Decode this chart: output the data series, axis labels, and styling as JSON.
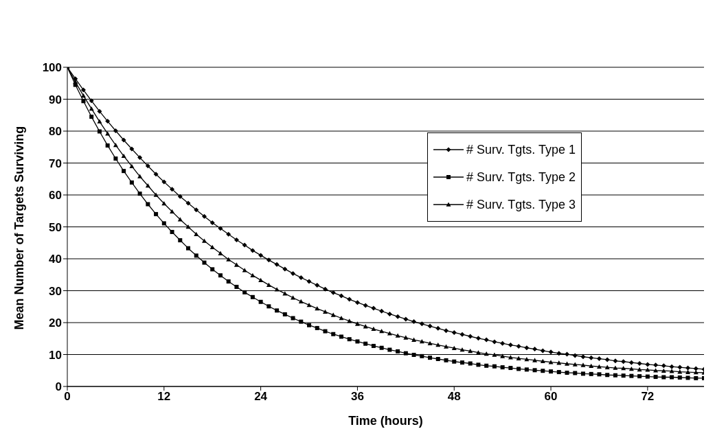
{
  "chart_data": {
    "type": "line",
    "xlabel": "Time (hours)",
    "ylabel": "Mean Number of Targets Surviving",
    "x": [
      0,
      1,
      2,
      3,
      4,
      5,
      6,
      7,
      8,
      9,
      10,
      11,
      12,
      13,
      14,
      15,
      16,
      17,
      18,
      19,
      20,
      21,
      22,
      23,
      24,
      25,
      26,
      27,
      28,
      29,
      30,
      31,
      32,
      33,
      34,
      35,
      36,
      37,
      38,
      39,
      40,
      41,
      42,
      43,
      44,
      45,
      46,
      47,
      48,
      49,
      50,
      51,
      52,
      53,
      54,
      55,
      56,
      57,
      58,
      59,
      60,
      61,
      62,
      63,
      64,
      65,
      66,
      67,
      68,
      69,
      70,
      71,
      72,
      73,
      74,
      75,
      76,
      77,
      78,
      79
    ],
    "xlim": [
      0,
      79
    ],
    "xticks": [
      0,
      12,
      24,
      36,
      48,
      60,
      72
    ],
    "ylim": [
      0,
      100
    ],
    "yticks": [
      0,
      10,
      20,
      30,
      40,
      50,
      60,
      70,
      80,
      90,
      100
    ],
    "grid": "y",
    "legend": "right",
    "line_style": "solid",
    "series": [
      {
        "name": "# Surv. Tgts. Type 1",
        "color": "#000000",
        "marker": "diamond",
        "values": [
          100,
          96.4,
          92.9,
          89.5,
          86.2,
          83.1,
          80.1,
          77.2,
          74.4,
          71.7,
          69.1,
          66.5,
          64.1,
          61.8,
          59.5,
          57.4,
          55.3,
          53.3,
          51.3,
          49.5,
          47.7,
          45.9,
          44.3,
          42.6,
          41.1,
          39.6,
          38.2,
          36.8,
          35.4,
          34.1,
          32.9,
          31.7,
          30.5,
          29.4,
          28.4,
          27.3,
          26.3,
          25.4,
          24.5,
          23.6,
          22.7,
          21.9,
          21.1,
          20.3,
          19.6,
          18.9,
          18.2,
          17.5,
          16.9,
          16.3,
          15.7,
          15.1,
          14.6,
          14.0,
          13.5,
          13.0,
          12.6,
          12.1,
          11.7,
          11.2,
          10.8,
          10.4,
          10.1,
          9.7,
          9.3,
          9.0,
          8.7,
          8.4,
          8.0,
          7.8,
          7.5,
          7.2,
          6.9,
          6.7,
          6.5,
          6.2,
          6.0,
          5.8,
          5.6,
          5.4
        ]
      },
      {
        "name": "# Surv. Tgts. Type 2",
        "color": "#000000",
        "marker": "square",
        "values": [
          100,
          94.5,
          89.4,
          84.5,
          79.9,
          75.5,
          71.4,
          67.5,
          63.9,
          60.4,
          57.1,
          54.0,
          51.1,
          48.4,
          45.8,
          43.3,
          41.0,
          38.8,
          36.7,
          34.8,
          32.9,
          31.2,
          29.5,
          28.0,
          26.5,
          25.1,
          23.8,
          22.6,
          21.4,
          20.3,
          19.2,
          18.3,
          17.3,
          16.4,
          15.6,
          14.8,
          14.1,
          13.4,
          12.7,
          12.1,
          11.5,
          11.0,
          10.4,
          9.9,
          9.5,
          9.0,
          8.6,
          8.2,
          7.8,
          7.5,
          7.2,
          6.8,
          6.5,
          6.3,
          6.0,
          5.8,
          5.5,
          5.3,
          5.1,
          4.9,
          4.7,
          4.5,
          4.3,
          4.2,
          4.0,
          3.9,
          3.8,
          3.6,
          3.5,
          3.4,
          3.3,
          3.2,
          3.1,
          3.0,
          2.9,
          2.9,
          2.8,
          2.7,
          2.6,
          2.6
        ]
      },
      {
        "name": "# Surv. Tgts. Type 3",
        "color": "#000000",
        "marker": "triangle",
        "values": [
          100,
          95.4,
          91.1,
          87.0,
          83.0,
          79.2,
          75.6,
          72.2,
          69.0,
          65.8,
          62.9,
          60.0,
          57.3,
          54.8,
          52.3,
          50.0,
          47.7,
          45.6,
          43.6,
          41.7,
          39.8,
          38.1,
          36.4,
          34.8,
          33.3,
          31.8,
          30.4,
          29.1,
          27.8,
          26.6,
          25.5,
          24.4,
          23.4,
          22.4,
          21.4,
          20.5,
          19.6,
          18.8,
          18.0,
          17.3,
          16.6,
          15.9,
          15.3,
          14.6,
          14.1,
          13.5,
          13.0,
          12.5,
          12.0,
          11.5,
          11.1,
          10.6,
          10.2,
          9.9,
          9.5,
          9.1,
          8.8,
          8.5,
          8.2,
          7.9,
          7.6,
          7.4,
          7.1,
          6.9,
          6.7,
          6.4,
          6.2,
          6.0,
          5.8,
          5.7,
          5.5,
          5.3,
          5.2,
          5.0,
          4.9,
          4.8,
          4.6,
          4.5,
          4.4,
          4.3
        ]
      }
    ]
  }
}
